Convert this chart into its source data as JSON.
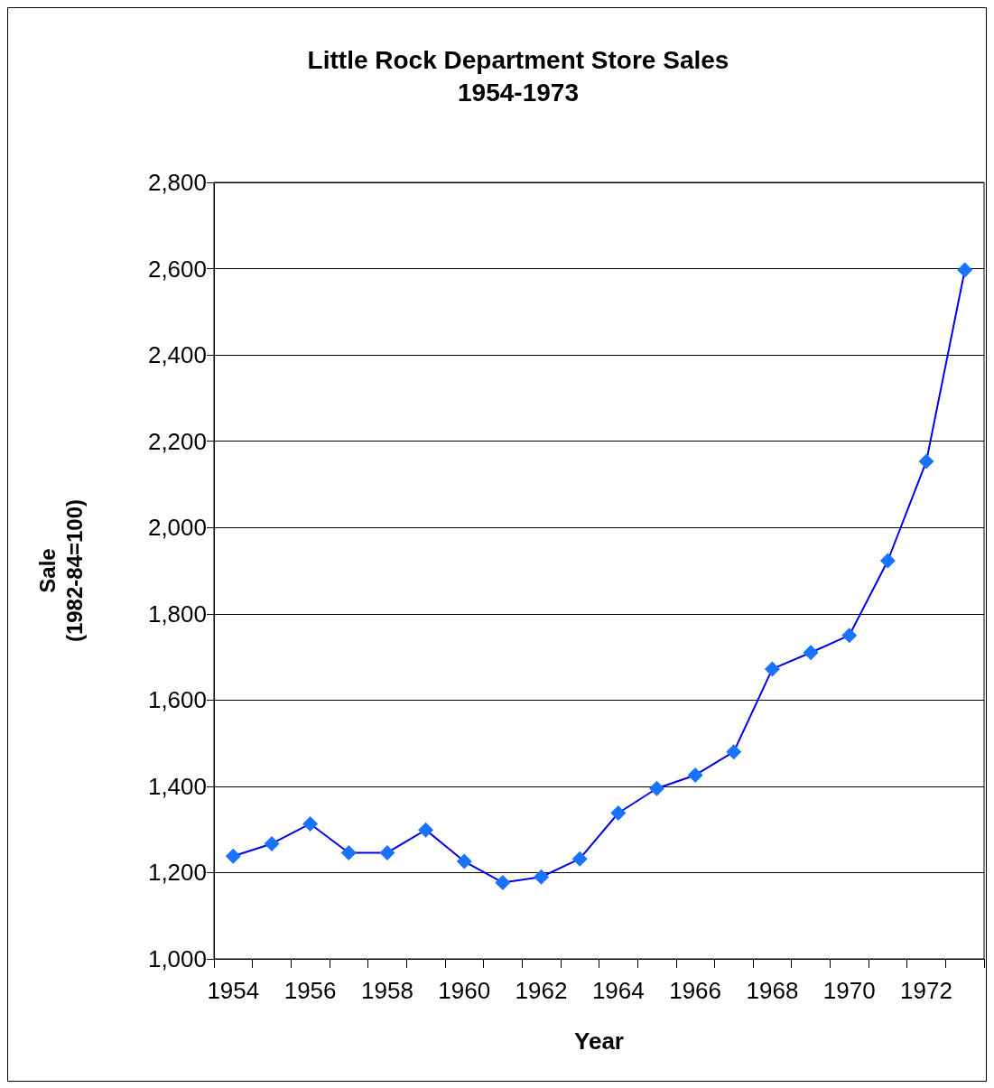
{
  "chart_data": {
    "type": "line",
    "title": "Little Rock Department Store Sales",
    "subtitle": "1954-1973",
    "xlabel": "Year",
    "ylabel": "Sale\n(1982-84=100)",
    "categories": [
      "1954",
      null,
      "1956",
      null,
      "1958",
      null,
      "1960",
      null,
      "1962",
      null,
      "1964",
      null,
      "1966",
      null,
      "1968",
      null,
      "1970",
      null,
      "1972",
      null
    ],
    "series": [
      {
        "color": "#1a73ff",
        "values": [
          1238,
          1267,
          1313,
          1246,
          1246,
          1299,
          1226,
          1177,
          1190,
          1232,
          1338,
          1395,
          1426,
          1480,
          1672,
          1710,
          1750,
          1923,
          2153,
          2597
        ]
      }
    ],
    "ylim": [
      1000,
      2800
    ],
    "yticks": [
      {
        "value": 1000,
        "label": "1,000"
      },
      {
        "value": 1200,
        "label": "1,200"
      },
      {
        "value": 1400,
        "label": "1,400"
      },
      {
        "value": 1600,
        "label": "1,600"
      },
      {
        "value": 1800,
        "label": "1,800"
      },
      {
        "value": 2000,
        "label": "2,000"
      },
      {
        "value": 2200,
        "label": "2,200"
      },
      {
        "value": 2400,
        "label": "2,400"
      },
      {
        "value": 2600,
        "label": "2,600"
      },
      {
        "value": 2800,
        "label": "2,800"
      }
    ],
    "grid": "y",
    "marker": "diamond",
    "line_style": "solid"
  }
}
